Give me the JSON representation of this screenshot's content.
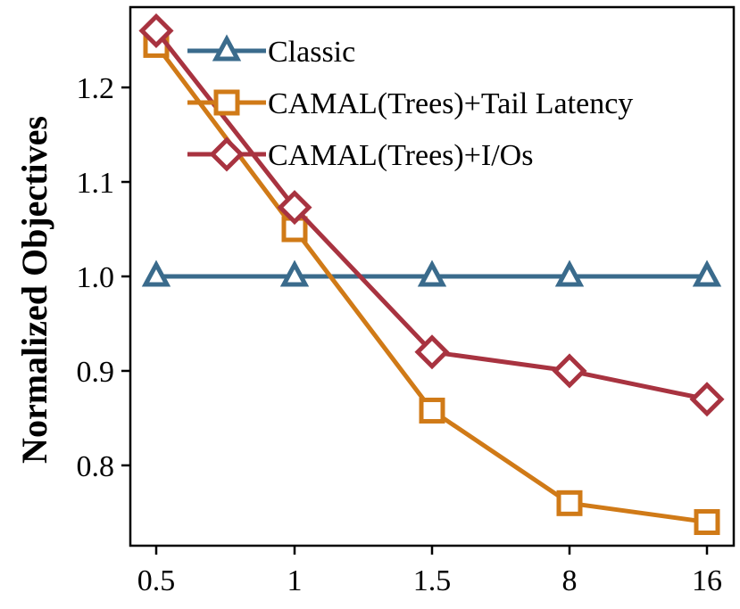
{
  "chart_data": {
    "type": "line",
    "categories": [
      "0.5",
      "1",
      "1.5",
      "8",
      "16"
    ],
    "ylabel": "Normalized Objectives",
    "xlabel": "",
    "ylim": [
      0.715,
      1.285
    ],
    "yticks": [
      "0.8",
      "0.9",
      "1.0",
      "1.1",
      "1.2"
    ],
    "grid": false,
    "legend_position": "top-left",
    "series": [
      {
        "name": "Classic",
        "color": "#3a6b8c",
        "marker": "triangle",
        "x": [
          "0.5",
          "1",
          "1.5",
          "8",
          "16"
        ],
        "values": [
          1.0,
          1.0,
          1.0,
          1.0,
          1.0
        ]
      },
      {
        "name": "CAMAL(Trees)+Tail Latency",
        "color": "#d07a17",
        "marker": "square",
        "x": [
          "0.5",
          "1",
          "1.5",
          "8",
          "16"
        ],
        "values": [
          1.245,
          1.05,
          0.858,
          0.76,
          0.74
        ]
      },
      {
        "name": "CAMAL(Trees)+I/Os",
        "color": "#a83340",
        "marker": "diamond",
        "x": [
          "0.5",
          "1",
          "1.5",
          "8",
          "16"
        ],
        "values": [
          1.26,
          1.073,
          0.92,
          0.9,
          0.87
        ]
      }
    ]
  }
}
